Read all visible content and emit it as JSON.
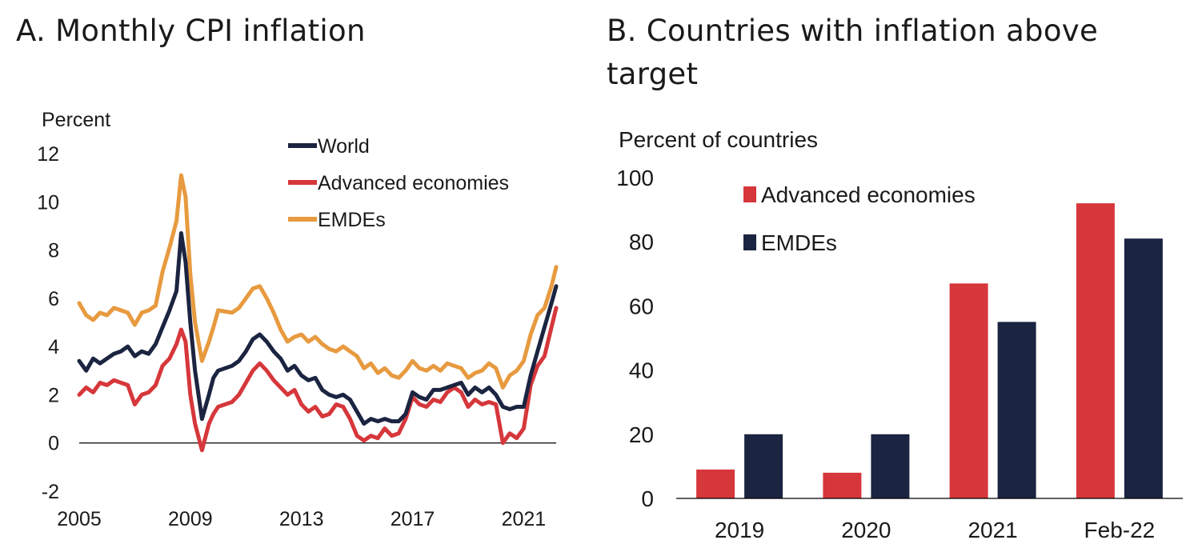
{
  "colors": {
    "world": "#1b2440",
    "advanced": "#d6373b",
    "emdes": "#e79a3f",
    "axis": "#000000"
  },
  "panel_a": {
    "title": "A. Monthly CPI inflation"
  },
  "panel_b": {
    "title": "B. Countries with inflation above target"
  },
  "chart_data": [
    {
      "type": "line",
      "title": "A. Monthly CPI inflation",
      "ylabel": "Percent",
      "xlabel": "",
      "ylim": [
        -2,
        12
      ],
      "yticks": [
        -2,
        0,
        2,
        4,
        6,
        8,
        10,
        12
      ],
      "xticks": [
        2005,
        2009,
        2013,
        2017,
        2021
      ],
      "xlim": [
        2005,
        2022.17
      ],
      "legend": "top-center",
      "series": [
        {
          "name": "World",
          "color_key": "world",
          "points": [
            [
              2005.0,
              3.4
            ],
            [
              2005.25,
              3.0
            ],
            [
              2005.5,
              3.5
            ],
            [
              2005.75,
              3.3
            ],
            [
              2006.0,
              3.5
            ],
            [
              2006.25,
              3.7
            ],
            [
              2006.5,
              3.8
            ],
            [
              2006.75,
              4.0
            ],
            [
              2007.0,
              3.6
            ],
            [
              2007.25,
              3.8
            ],
            [
              2007.5,
              3.7
            ],
            [
              2007.75,
              4.1
            ],
            [
              2008.0,
              4.8
            ],
            [
              2008.25,
              5.5
            ],
            [
              2008.5,
              6.3
            ],
            [
              2008.67,
              8.7
            ],
            [
              2008.83,
              7.5
            ],
            [
              2009.0,
              5.0
            ],
            [
              2009.17,
              3.0
            ],
            [
              2009.42,
              1.0
            ],
            [
              2009.67,
              2.0
            ],
            [
              2009.83,
              2.7
            ],
            [
              2010.0,
              3.0
            ],
            [
              2010.5,
              3.2
            ],
            [
              2010.75,
              3.4
            ],
            [
              2011.0,
              3.8
            ],
            [
              2011.25,
              4.3
            ],
            [
              2011.5,
              4.5
            ],
            [
              2011.75,
              4.2
            ],
            [
              2012.0,
              3.8
            ],
            [
              2012.25,
              3.5
            ],
            [
              2012.5,
              3.0
            ],
            [
              2012.75,
              3.2
            ],
            [
              2013.0,
              2.8
            ],
            [
              2013.25,
              2.6
            ],
            [
              2013.5,
              2.7
            ],
            [
              2013.75,
              2.2
            ],
            [
              2014.0,
              2.0
            ],
            [
              2014.25,
              1.9
            ],
            [
              2014.5,
              2.0
            ],
            [
              2014.75,
              1.8
            ],
            [
              2015.0,
              1.3
            ],
            [
              2015.25,
              0.8
            ],
            [
              2015.5,
              1.0
            ],
            [
              2015.75,
              0.9
            ],
            [
              2016.0,
              1.0
            ],
            [
              2016.25,
              0.9
            ],
            [
              2016.5,
              0.9
            ],
            [
              2016.75,
              1.2
            ],
            [
              2017.0,
              2.1
            ],
            [
              2017.25,
              1.9
            ],
            [
              2017.5,
              1.8
            ],
            [
              2017.75,
              2.2
            ],
            [
              2018.0,
              2.2
            ],
            [
              2018.25,
              2.3
            ],
            [
              2018.5,
              2.4
            ],
            [
              2018.75,
              2.5
            ],
            [
              2019.0,
              2.0
            ],
            [
              2019.25,
              2.3
            ],
            [
              2019.5,
              2.1
            ],
            [
              2019.75,
              2.3
            ],
            [
              2020.0,
              2.0
            ],
            [
              2020.25,
              1.5
            ],
            [
              2020.5,
              1.4
            ],
            [
              2020.75,
              1.5
            ],
            [
              2021.0,
              1.5
            ],
            [
              2021.25,
              2.8
            ],
            [
              2021.5,
              3.8
            ],
            [
              2021.75,
              4.8
            ],
            [
              2022.0,
              5.8
            ],
            [
              2022.17,
              6.5
            ]
          ]
        },
        {
          "name": "Advanced economies",
          "color_key": "advanced",
          "points": [
            [
              2005.0,
              2.0
            ],
            [
              2005.25,
              2.3
            ],
            [
              2005.5,
              2.1
            ],
            [
              2005.75,
              2.5
            ],
            [
              2006.0,
              2.4
            ],
            [
              2006.25,
              2.6
            ],
            [
              2006.5,
              2.5
            ],
            [
              2006.75,
              2.4
            ],
            [
              2007.0,
              1.6
            ],
            [
              2007.25,
              2.0
            ],
            [
              2007.5,
              2.1
            ],
            [
              2007.75,
              2.4
            ],
            [
              2008.0,
              3.2
            ],
            [
              2008.25,
              3.5
            ],
            [
              2008.5,
              4.1
            ],
            [
              2008.67,
              4.7
            ],
            [
              2008.83,
              4.2
            ],
            [
              2009.0,
              2.0
            ],
            [
              2009.17,
              0.8
            ],
            [
              2009.42,
              -0.3
            ],
            [
              2009.67,
              0.8
            ],
            [
              2009.83,
              1.2
            ],
            [
              2010.0,
              1.5
            ],
            [
              2010.5,
              1.7
            ],
            [
              2010.75,
              2.0
            ],
            [
              2011.0,
              2.5
            ],
            [
              2011.25,
              3.0
            ],
            [
              2011.5,
              3.3
            ],
            [
              2011.75,
              3.0
            ],
            [
              2012.0,
              2.6
            ],
            [
              2012.25,
              2.3
            ],
            [
              2012.5,
              2.0
            ],
            [
              2012.75,
              2.2
            ],
            [
              2013.0,
              1.6
            ],
            [
              2013.25,
              1.3
            ],
            [
              2013.5,
              1.5
            ],
            [
              2013.75,
              1.1
            ],
            [
              2014.0,
              1.2
            ],
            [
              2014.25,
              1.6
            ],
            [
              2014.5,
              1.5
            ],
            [
              2014.75,
              1.0
            ],
            [
              2015.0,
              0.3
            ],
            [
              2015.25,
              0.1
            ],
            [
              2015.5,
              0.3
            ],
            [
              2015.75,
              0.2
            ],
            [
              2016.0,
              0.6
            ],
            [
              2016.25,
              0.3
            ],
            [
              2016.5,
              0.4
            ],
            [
              2016.75,
              1.0
            ],
            [
              2017.0,
              1.9
            ],
            [
              2017.25,
              1.6
            ],
            [
              2017.5,
              1.5
            ],
            [
              2017.75,
              1.8
            ],
            [
              2018.0,
              1.7
            ],
            [
              2018.25,
              2.1
            ],
            [
              2018.5,
              2.3
            ],
            [
              2018.75,
              2.1
            ],
            [
              2019.0,
              1.5
            ],
            [
              2019.25,
              1.8
            ],
            [
              2019.5,
              1.6
            ],
            [
              2019.75,
              1.7
            ],
            [
              2020.0,
              1.6
            ],
            [
              2020.25,
              0.0
            ],
            [
              2020.5,
              0.4
            ],
            [
              2020.75,
              0.2
            ],
            [
              2021.0,
              0.6
            ],
            [
              2021.25,
              2.4
            ],
            [
              2021.5,
              3.2
            ],
            [
              2021.75,
              3.6
            ],
            [
              2022.0,
              4.8
            ],
            [
              2022.17,
              5.6
            ]
          ]
        },
        {
          "name": "EMDEs",
          "color_key": "emdes",
          "points": [
            [
              2005.0,
              5.8
            ],
            [
              2005.25,
              5.3
            ],
            [
              2005.5,
              5.1
            ],
            [
              2005.75,
              5.4
            ],
            [
              2006.0,
              5.3
            ],
            [
              2006.25,
              5.6
            ],
            [
              2006.5,
              5.5
            ],
            [
              2006.75,
              5.4
            ],
            [
              2007.0,
              4.9
            ],
            [
              2007.25,
              5.4
            ],
            [
              2007.5,
              5.5
            ],
            [
              2007.75,
              5.7
            ],
            [
              2008.0,
              7.1
            ],
            [
              2008.25,
              8.1
            ],
            [
              2008.5,
              9.2
            ],
            [
              2008.67,
              11.1
            ],
            [
              2008.83,
              10.2
            ],
            [
              2009.0,
              7.0
            ],
            [
              2009.17,
              5.0
            ],
            [
              2009.42,
              3.4
            ],
            [
              2009.67,
              4.2
            ],
            [
              2009.83,
              4.8
            ],
            [
              2010.0,
              5.5
            ],
            [
              2010.5,
              5.4
            ],
            [
              2010.75,
              5.6
            ],
            [
              2011.0,
              6.0
            ],
            [
              2011.25,
              6.4
            ],
            [
              2011.5,
              6.5
            ],
            [
              2011.75,
              6.0
            ],
            [
              2012.0,
              5.4
            ],
            [
              2012.25,
              4.7
            ],
            [
              2012.5,
              4.2
            ],
            [
              2012.75,
              4.4
            ],
            [
              2013.0,
              4.5
            ],
            [
              2013.25,
              4.2
            ],
            [
              2013.5,
              4.4
            ],
            [
              2013.75,
              4.1
            ],
            [
              2014.0,
              3.9
            ],
            [
              2014.25,
              3.8
            ],
            [
              2014.5,
              4.0
            ],
            [
              2014.75,
              3.8
            ],
            [
              2015.0,
              3.6
            ],
            [
              2015.25,
              3.1
            ],
            [
              2015.5,
              3.3
            ],
            [
              2015.75,
              2.9
            ],
            [
              2016.0,
              3.1
            ],
            [
              2016.25,
              2.8
            ],
            [
              2016.5,
              2.7
            ],
            [
              2016.75,
              3.0
            ],
            [
              2017.0,
              3.4
            ],
            [
              2017.25,
              3.1
            ],
            [
              2017.5,
              3.0
            ],
            [
              2017.75,
              3.2
            ],
            [
              2018.0,
              3.0
            ],
            [
              2018.25,
              3.3
            ],
            [
              2018.5,
              3.2
            ],
            [
              2018.75,
              3.1
            ],
            [
              2019.0,
              2.7
            ],
            [
              2019.25,
              2.9
            ],
            [
              2019.5,
              3.0
            ],
            [
              2019.75,
              3.3
            ],
            [
              2020.0,
              3.1
            ],
            [
              2020.25,
              2.3
            ],
            [
              2020.5,
              2.8
            ],
            [
              2020.75,
              3.0
            ],
            [
              2021.0,
              3.4
            ],
            [
              2021.25,
              4.5
            ],
            [
              2021.5,
              5.3
            ],
            [
              2021.75,
              5.6
            ],
            [
              2022.0,
              6.5
            ],
            [
              2022.17,
              7.3
            ]
          ]
        }
      ]
    },
    {
      "type": "bar",
      "title": "B. Countries with inflation above target",
      "ylabel": "Percent of countries",
      "xlabel": "",
      "ylim": [
        0,
        100
      ],
      "yticks": [
        0,
        20,
        40,
        60,
        80,
        100
      ],
      "categories": [
        "2019",
        "2020",
        "2021",
        "Feb-22"
      ],
      "legend": "top-left",
      "series": [
        {
          "name": "Advanced economies",
          "color_key": "advanced",
          "values": [
            9,
            8,
            67,
            92
          ]
        },
        {
          "name": "EMDEs",
          "color_key": "emdes_bar",
          "values": [
            20,
            20,
            55,
            81
          ]
        }
      ]
    }
  ]
}
